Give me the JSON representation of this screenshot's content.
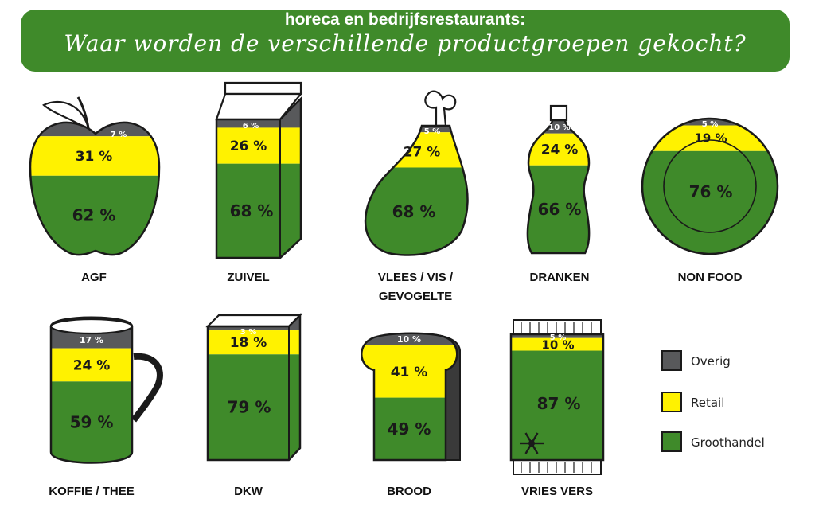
{
  "header": {
    "subtitle": "horeca en bedrijfsrestaurants:",
    "title": "Waar worden de verschillende productgroepen gekocht?"
  },
  "colors": {
    "overig": "#58595b",
    "retail": "#fff200",
    "groothandel": "#3f8a2a",
    "outline": "#1a1a1a"
  },
  "chart_data": {
    "type": "stacked-percentage-pictogram",
    "unit": "%",
    "series": [
      {
        "name": "Overig"
      },
      {
        "name": "Retail"
      },
      {
        "name": "Groothandel"
      }
    ],
    "categories": [
      {
        "label": "AGF",
        "icon": "apple-icon",
        "overig": 7,
        "retail": 31,
        "groothandel": 62
      },
      {
        "label": "ZUIVEL",
        "icon": "milk-carton-icon",
        "overig": 6,
        "retail": 26,
        "groothandel": 68
      },
      {
        "label": "VLEES / VIS /",
        "label2": "GEVOGELTE",
        "icon": "drumstick-icon",
        "overig": 5,
        "retail": 27,
        "groothandel": 68
      },
      {
        "label": "DRANKEN",
        "icon": "bottle-icon",
        "overig": 10,
        "retail": 24,
        "groothandel": 66
      },
      {
        "label": "NON FOOD",
        "icon": "plate-icon",
        "overig": 5,
        "retail": 19,
        "groothandel": 76
      },
      {
        "label": "KOFFIE / THEE",
        "icon": "mug-icon",
        "overig": 17,
        "retail": 24,
        "groothandel": 59
      },
      {
        "label": "DKW",
        "icon": "box-icon",
        "overig": 3,
        "retail": 18,
        "groothandel": 79
      },
      {
        "label": "BROOD",
        "icon": "bread-icon",
        "overig": 10,
        "retail": 41,
        "groothandel": 49
      },
      {
        "label": "VRIES VERS",
        "icon": "frozen-bag-icon",
        "overig": 5,
        "retail": 10,
        "groothandel": 87
      }
    ],
    "legend": {
      "position": "bottom-right",
      "items": [
        {
          "label": "Overig",
          "color": "#58595b"
        },
        {
          "label": "Retail",
          "color": "#fff200"
        },
        {
          "label": "Groothandel",
          "color": "#3f8a2a"
        }
      ]
    }
  }
}
